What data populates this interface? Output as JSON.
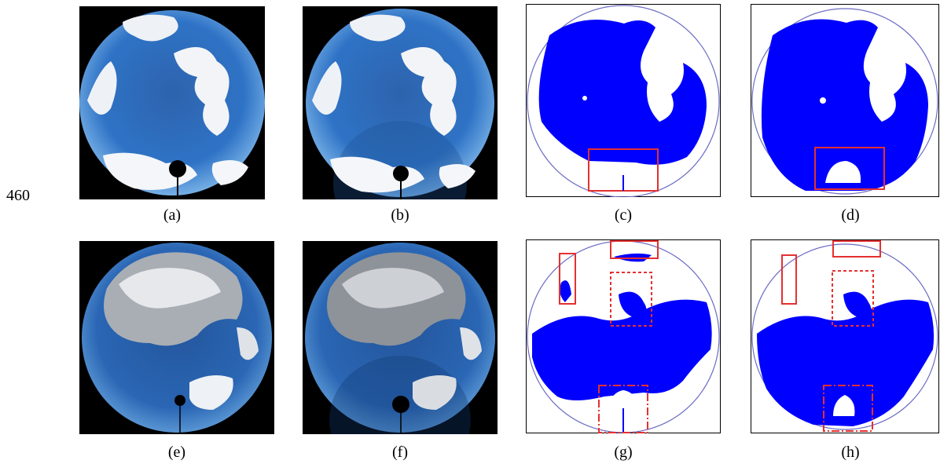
{
  "line_number": "460",
  "panels": [
    {
      "id": "a",
      "label": "(a)",
      "kind": "sky"
    },
    {
      "id": "b",
      "label": "(b)",
      "kind": "sky-corrected"
    },
    {
      "id": "c",
      "label": "(c)",
      "kind": "mask"
    },
    {
      "id": "d",
      "label": "(d)",
      "kind": "mask"
    },
    {
      "id": "e",
      "label": "(e)",
      "kind": "sky"
    },
    {
      "id": "f",
      "label": "(f)",
      "kind": "sky-corrected"
    },
    {
      "id": "g",
      "label": "(g)",
      "kind": "mask"
    },
    {
      "id": "h",
      "label": "(h)",
      "kind": "mask"
    }
  ],
  "colors": {
    "sky_dark": "#1f57a3",
    "sky_light": "#7fb8ea",
    "cloud": "#f2f4f7",
    "cloud_grey": "#a9aeb4",
    "mask_blue": "#0000ff",
    "highlight_red": "#e53030",
    "circle_outline": "#6b6bc4"
  }
}
